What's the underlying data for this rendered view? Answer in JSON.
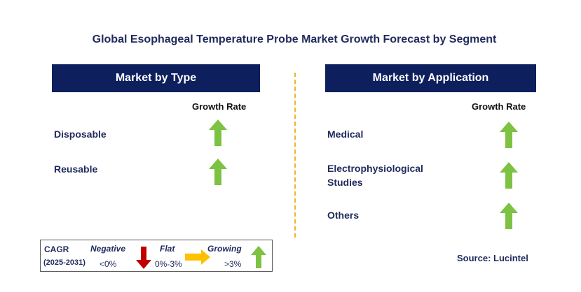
{
  "title": "Global Esophageal Temperature Probe Market Growth Forecast by Segment",
  "left_panel": {
    "header": "Market by Type",
    "column_header": "Growth Rate",
    "rows": [
      {
        "label": "Disposable",
        "trend": "growing"
      },
      {
        "label": "Reusable",
        "trend": "growing"
      }
    ]
  },
  "right_panel": {
    "header": "Market by Application",
    "column_header": "Growth Rate",
    "rows": [
      {
        "label_line1": "Medical",
        "label_line2": "",
        "trend": "growing"
      },
      {
        "label_line1": "Electrophysiological",
        "label_line2": "Studies",
        "trend": "growing"
      },
      {
        "label_line1": "Others",
        "label_line2": "",
        "trend": "growing"
      }
    ]
  },
  "legend": {
    "cagr_label": "CAGR",
    "period": "(2025-2031)",
    "negative_label": "Negative",
    "negative_range": "<0%",
    "flat_label": "Flat",
    "flat_range": "0%-3%",
    "growing_label": "Growing",
    "growing_range": ">3%"
  },
  "source": "Source: Lucintel",
  "colors": {
    "header_bg": "#0d1f5c",
    "title_text": "#1f2a5c",
    "growing_arrow": "#7dc242",
    "negative_arrow": "#c00000",
    "flat_arrow": "#ffc000",
    "divider": "#f0b429"
  }
}
